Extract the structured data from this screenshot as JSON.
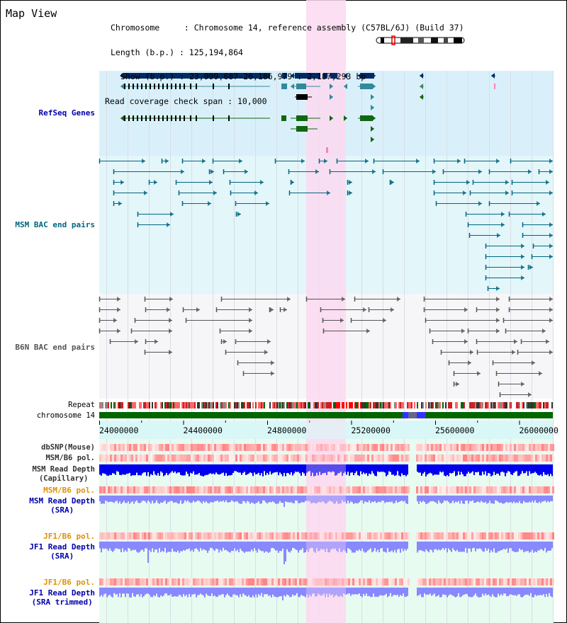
{
  "view_title": "Map View",
  "info": {
    "rows": [
      {
        "key": "Chromosome",
        "value": "Chromosome 14, reference assembly (C57BL/6J) (Build 37)"
      },
      {
        "key": "Length (b.p.)",
        "value": "125,194,864"
      },
      {
        "key": "Show (b.p.)",
        "value": "23,999,687-26,186,979 : 2,187,293 bp"
      },
      {
        "key": "Read coverage check span",
        "value": "10,000"
      }
    ]
  },
  "tracks": {
    "refseq": {
      "label": "RefSeq Genes",
      "color": "#0000aa"
    },
    "msm_bac": {
      "label": "MSM BAC end pairs",
      "color": "#006680"
    },
    "b6n_bac": {
      "label": "B6N BAC end pairs",
      "color": "#555555"
    },
    "repeat": {
      "label": "Repeat"
    },
    "chromosome": {
      "label": "chromosome 14"
    },
    "dbsnp": {
      "label": "dbSNP(Mouse)"
    },
    "msm_pol_1": {
      "label": "MSM/B6 pol."
    },
    "msm_depth_cap": {
      "label_line1": "MSM Read Depth",
      "label_line2": "(Capillary)"
    },
    "msm_pol_2": {
      "label": "MSM/B6 pol.",
      "color": "#e09000"
    },
    "msm_depth_sra": {
      "label_line1": "MSM Read Depth",
      "label_line2": "(SRA)",
      "color": "#0000aa"
    },
    "jf1_pol_1": {
      "label": "JF1/B6 pol.",
      "color": "#e09000"
    },
    "jf1_depth_sra": {
      "label_line1": "JF1 Read Depth",
      "label_line2": "(SRA)",
      "color": "#0000aa"
    },
    "jf1_pol_2": {
      "label": "JF1/B6 pol.",
      "color": "#e09000"
    },
    "jf1_depth_trim": {
      "label_line1": "JF1 Read Depth",
      "label_line2": "(SRA trimmed)",
      "color": "#0000aa"
    }
  },
  "axis": {
    "ticks": [
      "24000000",
      "24400000",
      "24800000",
      "25200000",
      "25600000",
      "26000000"
    ]
  },
  "colors": {
    "highlight": "#fbd9f0",
    "refseq_bg": "#d9f0fa",
    "msm_bac_bg": "#e3f6fa",
    "b6n_bac_bg": "#f6f6f8",
    "depth_bg": "#e8fbf0",
    "gene_main": "#002a66",
    "gene_teal": "#338899",
    "gene_green": "#116611",
    "chromosome_green": "#006600",
    "capillary_blue": "#0000ee",
    "sra_blue": "#8888ff"
  }
}
